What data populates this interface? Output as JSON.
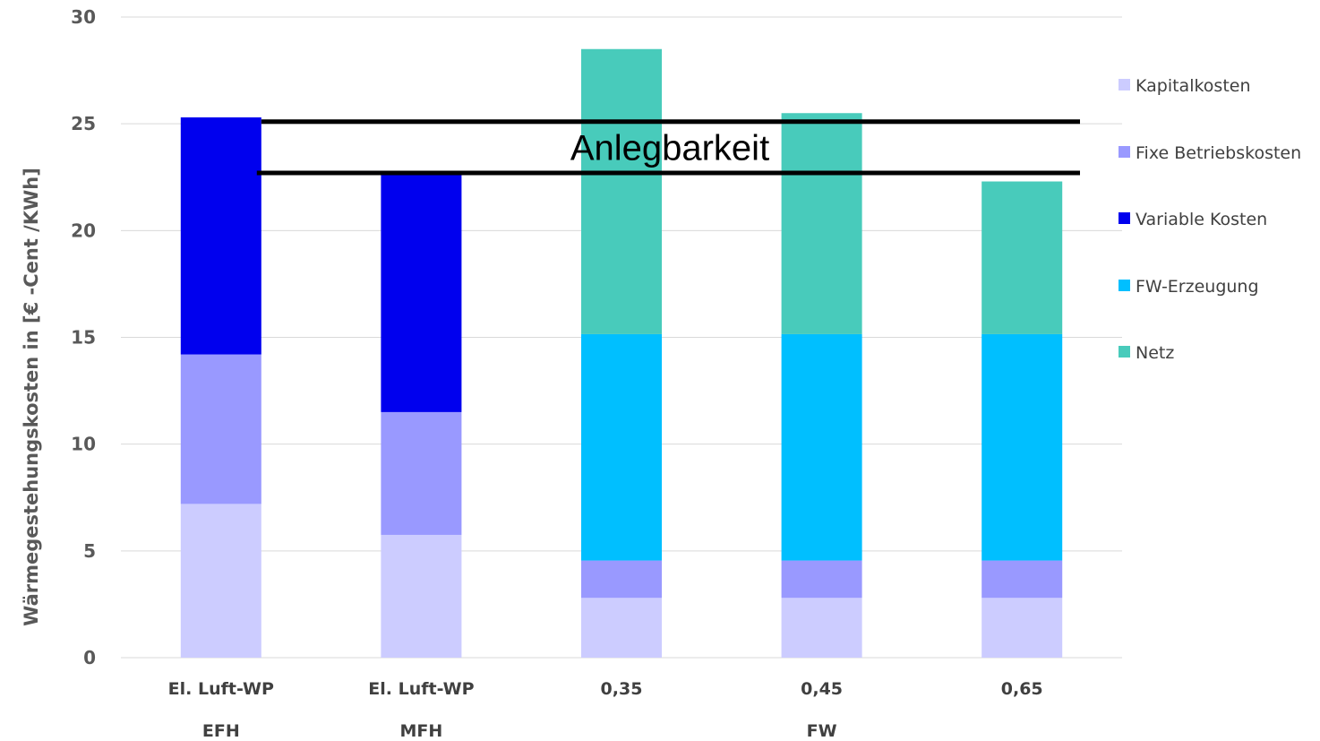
{
  "chart_data": {
    "type": "bar",
    "stacked": true,
    "categories": [
      "El. Luft-WP",
      "El. Luft-WP",
      "0,35",
      "0,45",
      "0,65"
    ],
    "group_labels": [
      "EFH",
      "MFH",
      "FW"
    ],
    "group_spans": [
      [
        0,
        0
      ],
      [
        1,
        1
      ],
      [
        2,
        4
      ]
    ],
    "ylabel": "Wärmegestehungskosten in [€ -Cent /KWh]",
    "ylim": [
      0,
      30
    ],
    "yticks": [
      0,
      5,
      10,
      15,
      20,
      25,
      30
    ],
    "grid": true,
    "legend_position": "right",
    "series": [
      {
        "name": "Kapitalkosten",
        "color": "#ccccff",
        "values": [
          7.2,
          5.75,
          2.8,
          2.8,
          2.8
        ]
      },
      {
        "name": "Fixe Betriebskosten",
        "color": "#9999ff",
        "values": [
          7.0,
          5.75,
          1.75,
          1.75,
          1.75
        ]
      },
      {
        "name": "Variable Kosten",
        "color": "#0000ee",
        "values": [
          11.1,
          11.2,
          0,
          0,
          0
        ]
      },
      {
        "name": "FW-Erzeugung",
        "color": "#00bfff",
        "values": [
          0,
          0,
          10.6,
          10.6,
          10.6
        ]
      },
      {
        "name": "Netz",
        "color": "#48cbbb",
        "values": [
          0,
          0,
          13.35,
          10.35,
          7.15
        ]
      }
    ],
    "annotations": [
      {
        "text": "Anlegbarkeit",
        "y_upper": 25.1,
        "y_lower": 22.7
      }
    ]
  }
}
